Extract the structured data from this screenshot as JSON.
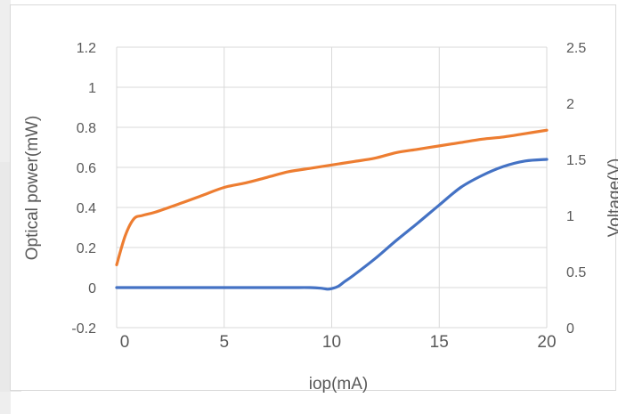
{
  "chart_data": {
    "type": "line",
    "title": "",
    "xlabel": "iop(mA)",
    "ylabel": "Optical power(mW)",
    "y2label": "Voltage(V)",
    "xlim": [
      0,
      20
    ],
    "ylim": [
      -0.2,
      1.2
    ],
    "y2lim": [
      0,
      2.5
    ],
    "xticks": [
      "0",
      "5",
      "10",
      "15",
      "20"
    ],
    "yticks": [
      "-0.2",
      "0",
      "0.2",
      "0.4",
      "0.6",
      "0.8",
      "1",
      "1.2"
    ],
    "y2ticks": [
      "0",
      "0.5",
      "1",
      "1.5",
      "2",
      "2.5"
    ],
    "grid": true,
    "legend": "none",
    "colors": {
      "power": "#4472c4",
      "voltage": "#ed7d31",
      "grid": "#d9d9d9",
      "text": "#595959"
    },
    "series": [
      {
        "axis": "left",
        "color": "#4472c4",
        "x": [
          0,
          2,
          4,
          6,
          8,
          9,
          9.5,
          9.8,
          10,
          10.3,
          10.6,
          11,
          12,
          13,
          14,
          15,
          16,
          17,
          18,
          19,
          20
        ],
        "values": [
          0,
          0,
          0,
          0,
          0,
          0,
          -0.003,
          -0.008,
          -0.005,
          0.006,
          0.03,
          0.06,
          0.143,
          0.235,
          0.322,
          0.412,
          0.5,
          0.56,
          0.605,
          0.632,
          0.64
        ]
      },
      {
        "axis": "right",
        "color": "#ed7d31",
        "x": [
          0,
          0.4,
          0.8,
          1.2,
          1.8,
          3,
          4,
          5,
          6,
          7,
          8,
          9,
          10,
          11,
          12,
          13,
          14,
          15,
          16,
          17,
          18,
          19,
          20
        ],
        "values": [
          0.56,
          0.82,
          0.97,
          1.0,
          1.03,
          1.11,
          1.18,
          1.25,
          1.29,
          1.34,
          1.39,
          1.42,
          1.45,
          1.48,
          1.51,
          1.56,
          1.59,
          1.62,
          1.65,
          1.68,
          1.7,
          1.73,
          1.76
        ]
      }
    ]
  }
}
